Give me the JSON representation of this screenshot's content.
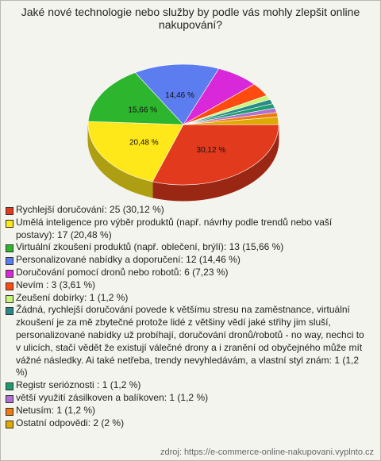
{
  "chart_data": {
    "type": "pie3d",
    "title": "Jaké nové technologie nebo služby by podle vás mohly zlepšit online nakupování?",
    "categories": [
      "Rychlejší doručování: 25 (30,12 %)",
      "Umělá inteligence pro výběr produktů (např. návrhy podle trendů nebo vaší postavy): 17 (20,48 %)",
      "Virtuální zkoušení produktů (např. oblečení, brýlí): 13 (15,66 %)",
      "Personalizované nabídky a doporučení: 12 (14,46 %)",
      "Doručování pomocí dronů nebo robotů: 6 (7,23 %)",
      "Nevím : 3 (3,61 %)",
      "Zeušení dobírky: 1 (1,2 %)",
      "Žádná, rychlejší doručování povede k většímu stresu na zaměstnance, virtuální zkoušení je za mě zbytečné protože lidé z většiny vědí jaké střihy jim sluší, personalizované nabídky už probíhají, doručování dronů/robotů - no way, nechci to v ulicích, stačí vědět že existují válečné drony a i zranění od obyčejného může mít vážné následky. Ai také netřeba, trendy nevyhledávám, a vlastní styl znám: 1 (1,2 %)",
      "Registr serióznosti : 1 (1,2 %)",
      "větší využití zásilkoven a balíkoven: 1 (1,2 %)",
      "Netusím: 1 (1,2 %)",
      "Ostatní odpovědi: 2 (2 %)"
    ],
    "values": [
      30.12,
      20.48,
      15.66,
      14.46,
      7.23,
      3.61,
      1.2,
      1.2,
      1.2,
      1.2,
      1.2,
      2
    ],
    "value_labels": [
      "30,12 %",
      "20,48 %",
      "15,66 %",
      "14,46 %",
      null,
      null,
      null,
      null,
      null,
      null,
      null,
      null
    ],
    "colors": [
      "#e23a1c",
      "#ffe81a",
      "#2db52d",
      "#5b7df0",
      "#d928d9",
      "#ff4a10",
      "#c8f57a",
      "#2a8a8a",
      "#1e9c6e",
      "#b070d0",
      "#ee7a10",
      "#ddaa00"
    ],
    "source": "zdroj: https://e-commerce-online-nakupovani.vyplnto.cz"
  }
}
